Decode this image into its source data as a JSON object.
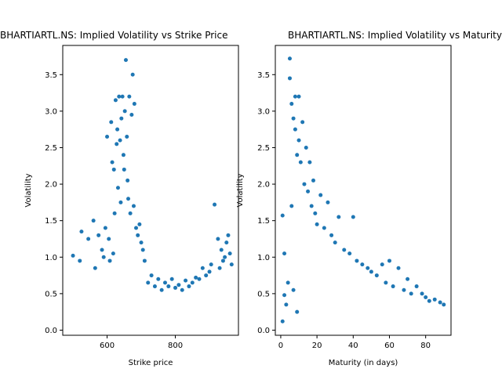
{
  "chart_data": [
    {
      "type": "scatter",
      "title": "BHARTIARTL.NS: Implied Volatility vs Strike Price",
      "xlabel": "Strike price",
      "ylabel": "Volatility",
      "xlim": [
        470,
        985
      ],
      "ylim": [
        -0.07,
        3.9
      ],
      "xticks": [
        600,
        800
      ],
      "xtick_labels": [
        "600",
        "800"
      ],
      "yticks": [
        0.0,
        0.5,
        1.0,
        1.5,
        2.0,
        2.5,
        3.0,
        3.5
      ],
      "ytick_labels": [
        "0.0",
        "0.5",
        "1.0",
        "1.5",
        "2.0",
        "2.5",
        "3.0",
        "3.5"
      ],
      "grid": false,
      "legend": "none",
      "color": "#1f77b4",
      "points": [
        [
          500,
          1.02
        ],
        [
          520,
          0.95
        ],
        [
          525,
          1.35
        ],
        [
          545,
          1.25
        ],
        [
          560,
          1.5
        ],
        [
          565,
          0.85
        ],
        [
          575,
          1.3
        ],
        [
          585,
          1.1
        ],
        [
          590,
          1.0
        ],
        [
          595,
          1.4
        ],
        [
          600,
          2.65
        ],
        [
          605,
          1.25
        ],
        [
          608,
          0.95
        ],
        [
          612,
          2.85
        ],
        [
          615,
          2.3
        ],
        [
          618,
          1.05
        ],
        [
          620,
          2.2
        ],
        [
          622,
          1.6
        ],
        [
          625,
          3.15
        ],
        [
          628,
          2.55
        ],
        [
          630,
          2.75
        ],
        [
          632,
          1.95
        ],
        [
          635,
          3.2
        ],
        [
          638,
          2.6
        ],
        [
          640,
          1.75
        ],
        [
          642,
          2.9
        ],
        [
          645,
          3.2
        ],
        [
          648,
          2.4
        ],
        [
          650,
          2.2
        ],
        [
          652,
          3.0
        ],
        [
          655,
          3.7
        ],
        [
          658,
          2.65
        ],
        [
          660,
          2.05
        ],
        [
          662,
          1.8
        ],
        [
          665,
          3.2
        ],
        [
          668,
          1.6
        ],
        [
          672,
          2.95
        ],
        [
          675,
          3.5
        ],
        [
          678,
          1.7
        ],
        [
          680,
          3.1
        ],
        [
          685,
          1.4
        ],
        [
          690,
          1.3
        ],
        [
          695,
          1.45
        ],
        [
          700,
          1.2
        ],
        [
          705,
          1.1
        ],
        [
          710,
          0.95
        ],
        [
          950,
          1.2
        ],
        [
          955,
          1.3
        ],
        [
          960,
          1.05
        ],
        [
          965,
          0.9
        ],
        [
          945,
          1.0
        ],
        [
          940,
          0.95
        ],
        [
          935,
          1.1
        ],
        [
          930,
          0.85
        ],
        [
          925,
          1.25
        ],
        [
          915,
          1.72
        ],
        [
          905,
          0.9
        ],
        [
          900,
          0.8
        ],
        [
          890,
          0.75
        ],
        [
          880,
          0.85
        ],
        [
          870,
          0.7
        ],
        [
          860,
          0.72
        ],
        [
          850,
          0.65
        ],
        [
          840,
          0.6
        ],
        [
          830,
          0.68
        ],
        [
          820,
          0.55
        ],
        [
          810,
          0.62
        ],
        [
          800,
          0.58
        ],
        [
          790,
          0.7
        ],
        [
          780,
          0.6
        ],
        [
          770,
          0.65
        ],
        [
          760,
          0.55
        ],
        [
          750,
          0.7
        ],
        [
          740,
          0.6
        ],
        [
          730,
          0.75
        ],
        [
          720,
          0.65
        ]
      ]
    },
    {
      "type": "scatter",
      "title": "BHARTIARTL.NS: Implied Volatility vs Maturity",
      "xlabel": "Maturity (in days)",
      "ylabel": "Volatility",
      "xlim": [
        -3,
        94
      ],
      "ylim": [
        -0.07,
        3.9
      ],
      "xticks": [
        0,
        20,
        40,
        60,
        80
      ],
      "xtick_labels": [
        "0",
        "20",
        "40",
        "60",
        "80"
      ],
      "yticks": [
        0.0,
        0.5,
        1.0,
        1.5,
        2.0,
        2.5,
        3.0,
        3.5
      ],
      "ytick_labels": [
        "0.0",
        "0.5",
        "1.0",
        "1.5",
        "2.0",
        "2.5",
        "3.0",
        "3.5"
      ],
      "grid": false,
      "legend": "none",
      "color": "#1f77b4",
      "points": [
        [
          1,
          0.12
        ],
        [
          1,
          1.57
        ],
        [
          2,
          0.48
        ],
        [
          2,
          1.05
        ],
        [
          3,
          0.35
        ],
        [
          4,
          0.65
        ],
        [
          5,
          3.45
        ],
        [
          5,
          3.72
        ],
        [
          6,
          3.1
        ],
        [
          6,
          1.7
        ],
        [
          7,
          2.9
        ],
        [
          7,
          0.55
        ],
        [
          8,
          2.75
        ],
        [
          8,
          3.2
        ],
        [
          9,
          2.4
        ],
        [
          9,
          0.25
        ],
        [
          10,
          2.6
        ],
        [
          10,
          3.2
        ],
        [
          11,
          2.3
        ],
        [
          12,
          2.85
        ],
        [
          13,
          2.0
        ],
        [
          14,
          2.5
        ],
        [
          15,
          1.9
        ],
        [
          16,
          2.3
        ],
        [
          17,
          1.7
        ],
        [
          18,
          2.05
        ],
        [
          19,
          1.6
        ],
        [
          20,
          1.45
        ],
        [
          22,
          1.85
        ],
        [
          24,
          1.4
        ],
        [
          26,
          1.75
        ],
        [
          28,
          1.3
        ],
        [
          30,
          1.2
        ],
        [
          32,
          1.55
        ],
        [
          35,
          1.1
        ],
        [
          38,
          1.05
        ],
        [
          40,
          1.55
        ],
        [
          42,
          0.95
        ],
        [
          45,
          0.9
        ],
        [
          48,
          0.85
        ],
        [
          50,
          0.8
        ],
        [
          53,
          0.75
        ],
        [
          56,
          0.9
        ],
        [
          58,
          0.65
        ],
        [
          60,
          0.95
        ],
        [
          62,
          0.6
        ],
        [
          65,
          0.85
        ],
        [
          68,
          0.55
        ],
        [
          70,
          0.7
        ],
        [
          72,
          0.5
        ],
        [
          75,
          0.6
        ],
        [
          78,
          0.5
        ],
        [
          80,
          0.45
        ],
        [
          82,
          0.4
        ],
        [
          85,
          0.42
        ],
        [
          88,
          0.38
        ],
        [
          90,
          0.35
        ]
      ]
    }
  ]
}
